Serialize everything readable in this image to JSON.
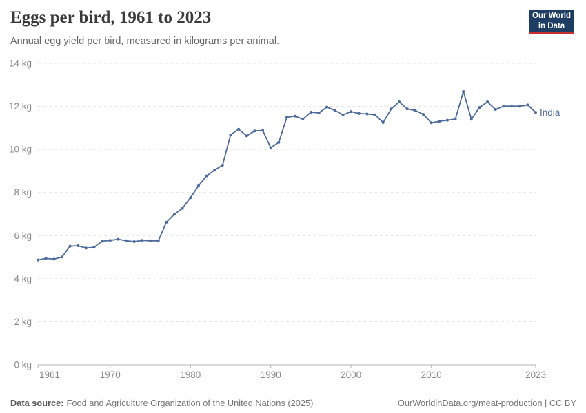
{
  "header": {
    "title": "Eggs per bird, 1961 to 2023",
    "subtitle": "Annual egg yield per bird, measured in kilograms per animal.",
    "logo": {
      "line1": "Our World",
      "line2": "in Data"
    }
  },
  "chart_data": {
    "type": "line",
    "title": "Eggs per bird, 1961 to 2023",
    "ylabel": "kg",
    "unit": "kg",
    "xlim": [
      1961,
      2023
    ],
    "ylim": [
      0,
      14
    ],
    "x_ticks": [
      1961,
      1970,
      1980,
      1990,
      2000,
      2010,
      2023
    ],
    "y_ticks": [
      0,
      2,
      4,
      6,
      8,
      10,
      12,
      14
    ],
    "y_tick_suffix": " kg",
    "grid": "horizontal-dashed",
    "legend_position": "end-of-line",
    "series": [
      {
        "name": "India",
        "color": "#4C6A9C",
        "years": [
          1961,
          1962,
          1963,
          1964,
          1965,
          1966,
          1967,
          1968,
          1969,
          1970,
          1971,
          1972,
          1973,
          1974,
          1975,
          1976,
          1977,
          1978,
          1979,
          1980,
          1981,
          1982,
          1983,
          1984,
          1985,
          1986,
          1987,
          1988,
          1989,
          1990,
          1991,
          1992,
          1993,
          1994,
          1995,
          1996,
          1997,
          1998,
          1999,
          2000,
          2001,
          2002,
          2003,
          2004,
          2005,
          2006,
          2007,
          2008,
          2009,
          2010,
          2011,
          2012,
          2013,
          2014,
          2015,
          2016,
          2017,
          2018,
          2019,
          2020,
          2021,
          2022,
          2023
        ],
        "values": [
          4.87,
          4.94,
          4.91,
          5.01,
          5.51,
          5.53,
          5.42,
          5.46,
          5.74,
          5.78,
          5.83,
          5.76,
          5.72,
          5.78,
          5.76,
          5.76,
          6.62,
          6.99,
          7.27,
          7.76,
          8.31,
          8.77,
          9.04,
          9.27,
          10.68,
          10.94,
          10.63,
          10.86,
          10.88,
          10.08,
          10.33,
          11.49,
          11.55,
          11.41,
          11.73,
          11.7,
          11.97,
          11.81,
          11.61,
          11.76,
          11.67,
          11.65,
          11.61,
          11.25,
          11.88,
          12.21,
          11.88,
          11.81,
          11.63,
          11.24,
          11.31,
          11.36,
          11.41,
          12.69,
          11.4,
          11.95,
          12.21,
          11.86,
          12.01,
          12.01,
          12.01,
          12.07,
          11.72
        ]
      }
    ]
  },
  "footer": {
    "source_label": "Data source:",
    "source_text": "Food and Agriculture Organization of the United Nations (2025)",
    "credit": "OurWorldinData.org/meat-production | CC BY"
  },
  "colors": {
    "line": "#4C6A9C",
    "grid": "#e3e3e3",
    "axis": "#b3b3b3",
    "tick_label": "#8a8a8a",
    "logo_bg": "#1d3d63",
    "logo_bar": "#c8302e"
  }
}
